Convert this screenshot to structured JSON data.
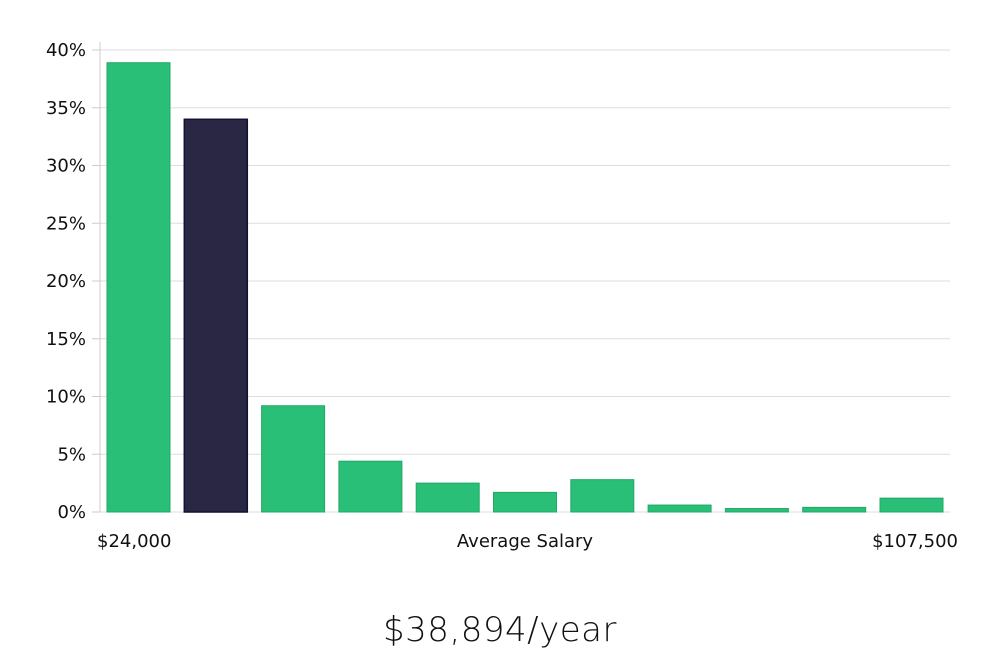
{
  "chart_data": {
    "type": "bar",
    "values": [
      38.9,
      34.0,
      9.2,
      4.4,
      2.5,
      1.7,
      2.8,
      0.6,
      0.3,
      0.4,
      1.2
    ],
    "highlight_index": 1,
    "xlabel": "Average Salary",
    "x_min_label": "$24,000",
    "x_max_label": "$107,500",
    "ylim": [
      0,
      40
    ],
    "yticks": [
      0,
      5,
      10,
      15,
      20,
      25,
      30,
      35,
      40
    ],
    "ytick_labels": [
      "0%",
      "5%",
      "10%",
      "15%",
      "20%",
      "25%",
      "30%",
      "35%",
      "40%"
    ],
    "grid": true,
    "colors": {
      "bar": "#2abf77",
      "bar_highlight": "#2a2745",
      "bar_highlight_stroke": "#111133",
      "grid": "#dddddd"
    }
  },
  "summary": {
    "average_salary": "$38,894/year"
  }
}
